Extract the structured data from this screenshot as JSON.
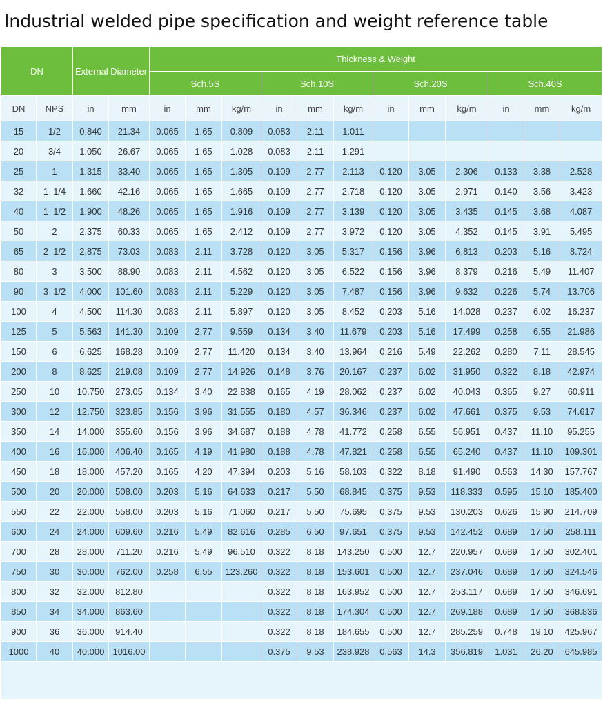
{
  "title": "Industrial welded pipe specification and weight reference table",
  "header": {
    "dn": "DN",
    "external_diameter": "External Diameter",
    "thickness_weight": "Thickness & Weight",
    "schedules": [
      "Sch.5S",
      "Sch.10S",
      "Sch.20S",
      "Sch.40S"
    ]
  },
  "subheader": [
    "DN",
    "NPS",
    "in",
    "mm",
    "in",
    "mm",
    "kg/m",
    "in",
    "mm",
    "kg/m",
    "in",
    "mm",
    "kg/m",
    "in",
    "mm",
    "kg/m"
  ],
  "rows": [
    [
      "15",
      "1/2",
      "0.840",
      "21.34",
      "0.065",
      "1.65",
      "0.809",
      "0.083",
      "2.11",
      "1.011",
      "",
      "",
      "",
      "",
      "",
      ""
    ],
    [
      "20",
      "3/4",
      "1.050",
      "26.67",
      "0.065",
      "1.65",
      "1.028",
      "0.083",
      "2.11",
      "1.291",
      "",
      "",
      "",
      "",
      "",
      ""
    ],
    [
      "25",
      "1",
      "1.315",
      "33.40",
      "0.065",
      "1.65",
      "1.305",
      "0.109",
      "2.77",
      "2.113",
      "0.120",
      "3.05",
      "2.306",
      "0.133",
      "3.38",
      "2.528"
    ],
    [
      "32",
      "1  1/4",
      "1.660",
      "42.16",
      "0.065",
      "1.65",
      "1.665",
      "0.109",
      "2.77",
      "2.718",
      "0.120",
      "3.05",
      "2.971",
      "0.140",
      "3.56",
      "3.423"
    ],
    [
      "40",
      "1  1/2",
      "1.900",
      "48.26",
      "0.065",
      "1.65",
      "1.916",
      "0.109",
      "2.77",
      "3.139",
      "0.120",
      "3.05",
      "3.435",
      "0.145",
      "3.68",
      "4.087"
    ],
    [
      "50",
      "2",
      "2.375",
      "60.33",
      "0.065",
      "1.65",
      "2.412",
      "0.109",
      "2.77",
      "3.972",
      "0.120",
      "3.05",
      "4.352",
      "0.145",
      "3.91",
      "5.495"
    ],
    [
      "65",
      "2  1/2",
      "2.875",
      "73.03",
      "0.083",
      "2.11",
      "3.728",
      "0.120",
      "3.05",
      "5.317",
      "0.156",
      "3.96",
      "6.813",
      "0.203",
      "5.16",
      "8.724"
    ],
    [
      "80",
      "3",
      "3.500",
      "88.90",
      "0.083",
      "2.11",
      "4.562",
      "0.120",
      "3.05",
      "6.522",
      "0.156",
      "3.96",
      "8.379",
      "0.216",
      "5.49",
      "11.407"
    ],
    [
      "90",
      "3  1/2",
      "4.000",
      "101.60",
      "0.083",
      "2.11",
      "5.229",
      "0.120",
      "3.05",
      "7.487",
      "0.156",
      "3.96",
      "9.632",
      "0.226",
      "5.74",
      "13.706"
    ],
    [
      "100",
      "4",
      "4.500",
      "114.30",
      "0.083",
      "2.11",
      "5.897",
      "0.120",
      "3.05",
      "8.452",
      "0.203",
      "5.16",
      "14.028",
      "0.237",
      "6.02",
      "16.237"
    ],
    [
      "125",
      "5",
      "5.563",
      "141.30",
      "0.109",
      "2.77",
      "9.559",
      "0.134",
      "3.40",
      "11.679",
      "0.203",
      "5.16",
      "17.499",
      "0.258",
      "6.55",
      "21.986"
    ],
    [
      "150",
      "6",
      "6.625",
      "168.28",
      "0.109",
      "2.77",
      "11.420",
      "0.134",
      "3.40",
      "13.964",
      "0.216",
      "5.49",
      "22.262",
      "0.280",
      "7.11",
      "28.545"
    ],
    [
      "200",
      "8",
      "8.625",
      "219.08",
      "0.109",
      "2.77",
      "14.926",
      "0.148",
      "3.76",
      "20.167",
      "0.237",
      "6.02",
      "31.950",
      "0.322",
      "8.18",
      "42.974"
    ],
    [
      "250",
      "10",
      "10.750",
      "273.05",
      "0.134",
      "3.40",
      "22.838",
      "0.165",
      "4.19",
      "28.062",
      "0.237",
      "6.02",
      "40.043",
      "0.365",
      "9.27",
      "60.911"
    ],
    [
      "300",
      "12",
      "12.750",
      "323.85",
      "0.156",
      "3.96",
      "31.555",
      "0.180",
      "4.57",
      "36.346",
      "0.237",
      "6.02",
      "47.661",
      "0.375",
      "9.53",
      "74.617"
    ],
    [
      "350",
      "14",
      "14.000",
      "355.60",
      "0.156",
      "3.96",
      "34.687",
      "0.188",
      "4.78",
      "41.772",
      "0.258",
      "6.55",
      "56.951",
      "0.437",
      "11.10",
      "95.255"
    ],
    [
      "400",
      "16",
      "16.000",
      "406.40",
      "0.165",
      "4.19",
      "41.980",
      "0.188",
      "4.78",
      "47.821",
      "0.258",
      "6.55",
      "65.240",
      "0.437",
      "11.10",
      "109.301"
    ],
    [
      "450",
      "18",
      "18.000",
      "457.20",
      "0.165",
      "4.20",
      "47.394",
      "0.203",
      "5.16",
      "58.103",
      "0.322",
      "8.18",
      "91.490",
      "0.563",
      "14.30",
      "157.767"
    ],
    [
      "500",
      "20",
      "20.000",
      "508.00",
      "0.203",
      "5.16",
      "64.633",
      "0.217",
      "5.50",
      "68.845",
      "0.375",
      "9.53",
      "118.333",
      "0.595",
      "15.10",
      "185.400"
    ],
    [
      "550",
      "22",
      "22.000",
      "558.00",
      "0.203",
      "5.16",
      "71.060",
      "0.217",
      "5.50",
      "75.695",
      "0.375",
      "9.53",
      "130.203",
      "0.626",
      "15.90",
      "214.709"
    ],
    [
      "600",
      "24",
      "24.000",
      "609.60",
      "0.216",
      "5.49",
      "82.616",
      "0.285",
      "6.50",
      "97.651",
      "0.375",
      "9.53",
      "142.452",
      "0.689",
      "17.50",
      "258.111"
    ],
    [
      "700",
      "28",
      "28.000",
      "711.20",
      "0.216",
      "5.49",
      "96.510",
      "0.322",
      "8.18",
      "143.250",
      "0.500",
      "12.7",
      "220.957",
      "0.689",
      "17.50",
      "302.401"
    ],
    [
      "750",
      "30",
      "30.000",
      "762.00",
      "0.258",
      "6.55",
      "123.260",
      "0.322",
      "8.18",
      "153.601",
      "0.500",
      "12.7",
      "237.046",
      "0.689",
      "17.50",
      "324.546"
    ],
    [
      "800",
      "32",
      "32.000",
      "812.80",
      "",
      "",
      "",
      "0.322",
      "8.18",
      "163.952",
      "0.500",
      "12.7",
      "253.117",
      "0.689",
      "17.50",
      "346.691"
    ],
    [
      "850",
      "34",
      "34.000",
      "863.60",
      "",
      "",
      "",
      "0.322",
      "8.18",
      "174.304",
      "0.500",
      "12.7",
      "269.188",
      "0.689",
      "17.50",
      "368.836"
    ],
    [
      "900",
      "36",
      "36.000",
      "914.40",
      "",
      "",
      "",
      "0.322",
      "8.18",
      "184.655",
      "0.500",
      "12.7",
      "285.259",
      "0.748",
      "19.10",
      "425.967"
    ],
    [
      "1000",
      "40",
      "40.000",
      "1016.00",
      "",
      "",
      "",
      "0.375",
      "9.53",
      "238.928",
      "0.563",
      "14.3",
      "356.819",
      "1.031",
      "26.20",
      "645.985"
    ]
  ]
}
